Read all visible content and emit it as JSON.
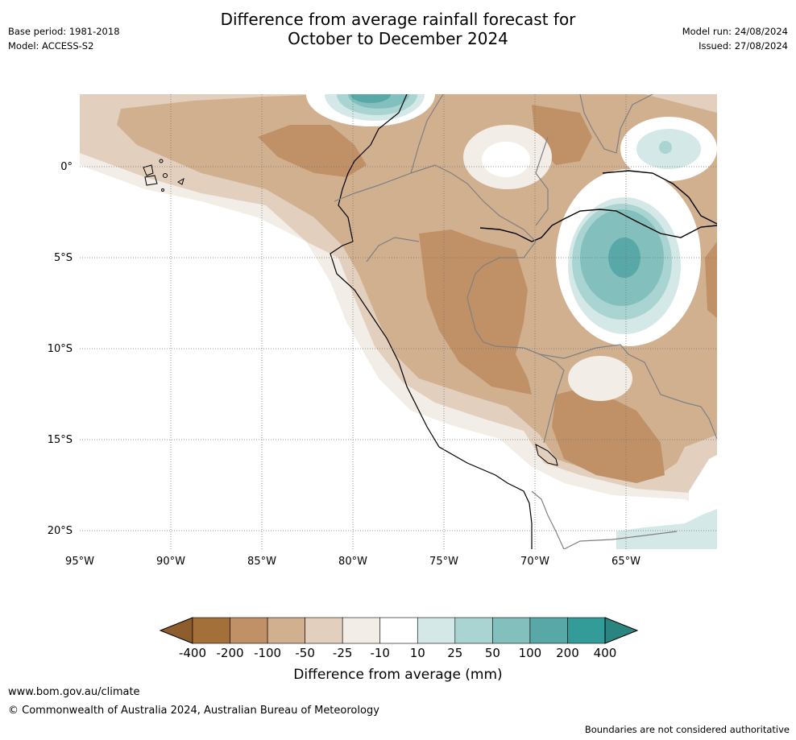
{
  "header": {
    "title_line1": "Difference from average rainfall forecast for",
    "title_line2": "October to December 2024",
    "base_period": "Base period: 1981-2018",
    "model": "Model: ACCESS-S2",
    "model_run": "Model run: 24/08/2024",
    "issued": "Issued: 27/08/2024"
  },
  "map": {
    "lon_labels": [
      "95°W",
      "90°W",
      "85°W",
      "80°W",
      "75°W",
      "70°W",
      "65°W"
    ],
    "lat_labels": [
      "0°",
      "5°S",
      "10°S",
      "15°S",
      "20°S"
    ]
  },
  "colorbar": {
    "ticks": [
      "-400",
      "-200",
      "-100",
      "-50",
      "-25",
      "-10",
      "10",
      "25",
      "50",
      "100",
      "200",
      "400"
    ],
    "colors": [
      "#a4703a",
      "#c09066",
      "#d1b090",
      "#e2cfbd",
      "#f2ede6",
      "#ffffff",
      "#d4e8e7",
      "#a9d4d2",
      "#83c0bd",
      "#57a8a6",
      "#349c98"
    ],
    "extend_low_color": "#8e5d2d",
    "extend_high_color": "#2a8580",
    "label": "Difference from average (mm)"
  },
  "footer": {
    "url": "www.bom.gov.au/climate",
    "copyright": "© Commonwealth of Australia 2024, Australian Bureau of Meteorology",
    "disclaimer": "Boundaries are not considered authoritative"
  }
}
